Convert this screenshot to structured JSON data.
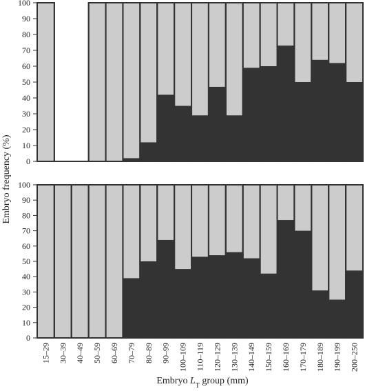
{
  "chart_data": {
    "type": "bar",
    "stacked": true,
    "ylabel": "Embryo frequency (%)",
    "xlabel_prefix": "Embryo ",
    "xlabel_var": "L",
    "xlabel_sub": "T",
    "xlabel_suffix": " group (mm)",
    "categories": [
      "15–29",
      "30–39",
      "40–49",
      "50–59",
      "60–69",
      "70–79",
      "80–89",
      "90–99",
      "100–109",
      "110–119",
      "120–129",
      "130–139",
      "140–149",
      "150–159",
      "160–169",
      "170–179",
      "180–189",
      "190–199",
      "200–250"
    ],
    "colors": {
      "dark": "#333333",
      "light": "#cccccc",
      "frame": "#333333"
    },
    "panels": [
      {
        "ylim": [
          0,
          100
        ],
        "yticks": [
          "0",
          "10",
          "20",
          "30",
          "40",
          "50",
          "60",
          "70",
          "80",
          "90",
          "100"
        ],
        "dark_values": [
          0,
          0,
          0,
          0,
          0,
          2,
          12,
          42,
          35,
          29,
          47,
          29,
          59,
          60,
          73,
          50,
          64,
          62,
          50
        ],
        "has_data": [
          true,
          false,
          false,
          true,
          true,
          true,
          true,
          true,
          true,
          true,
          true,
          true,
          true,
          true,
          true,
          true,
          true,
          true,
          true
        ]
      },
      {
        "ylim": [
          0,
          100
        ],
        "yticks": [
          "0",
          "10",
          "20",
          "30",
          "40",
          "50",
          "60",
          "70",
          "80",
          "90",
          "100"
        ],
        "dark_values": [
          0,
          0,
          0,
          0,
          0,
          39,
          50,
          64,
          45,
          53,
          54,
          56,
          52,
          42,
          77,
          70,
          31,
          25,
          44
        ],
        "has_data": [
          true,
          true,
          true,
          true,
          true,
          true,
          true,
          true,
          true,
          true,
          true,
          true,
          true,
          true,
          true,
          true,
          true,
          true,
          true
        ]
      }
    ]
  }
}
